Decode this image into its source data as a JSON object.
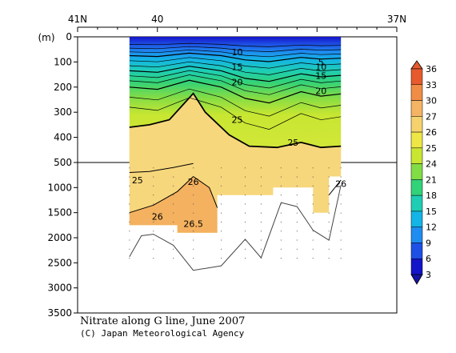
{
  "chart_data": {
    "type": "heatmap",
    "title": "Nitrate along G line, June 2007",
    "credit": "(C) Japan Meteorological Agency",
    "ylabel": "(m)",
    "top_axis": {
      "ticks": [
        {
          "lat": 41,
          "label": "41N"
        },
        {
          "lat": 40,
          "label": "40"
        },
        {
          "lat": 37,
          "label": "37N"
        }
      ],
      "range": [
        41,
        37
      ]
    },
    "depth_axis_upper": {
      "ticks": [
        0,
        100,
        200,
        300,
        400,
        500
      ],
      "range": [
        0,
        500
      ]
    },
    "depth_axis_lower": {
      "ticks": [
        500,
        1000,
        1500,
        2000,
        2500,
        3000,
        3500
      ],
      "range": [
        500,
        3500
      ]
    },
    "colorbar": {
      "labels": [
        "3",
        "6",
        "9",
        "12",
        "15",
        "18",
        "21",
        "24",
        "25",
        "26",
        "27",
        "30",
        "33",
        "36"
      ],
      "colors": [
        "#1414c8",
        "#1e50e6",
        "#1e8cf0",
        "#14b4e6",
        "#1ecdb4",
        "#32d278",
        "#82dc46",
        "#c8e632",
        "#eee646",
        "#f5d26e",
        "#f5b464",
        "#f08c46",
        "#e65a2d"
      ]
    },
    "section_extent_lat": [
      40.35,
      37.7
    ],
    "density_contours": [
      {
        "label": "10",
        "depth_m": 70
      },
      {
        "label": "15",
        "depth_m": 130
      },
      {
        "label": "20",
        "depth_m": 190
      },
      {
        "label": "25",
        "depth_m": 370
      },
      {
        "label": "26",
        "depth_m": 1500
      },
      {
        "label": "26.5",
        "depth_m": 1750
      }
    ],
    "contour_labels": [
      {
        "label": "10",
        "lat": 39.0,
        "depth": 60
      },
      {
        "label": "15",
        "lat": 39.0,
        "depth": 120
      },
      {
        "label": "20",
        "lat": 39.0,
        "depth": 180
      },
      {
        "label": "5",
        "lat": 37.95,
        "depth": 100
      },
      {
        "label": "10",
        "lat": 37.95,
        "depth": 120
      },
      {
        "label": "15",
        "lat": 37.95,
        "depth": 155
      },
      {
        "label": "20",
        "lat": 37.95,
        "depth": 215
      },
      {
        "label": "25",
        "lat": 39.0,
        "depth": 330
      },
      {
        "label": "25",
        "lat": 38.3,
        "depth": 420
      },
      {
        "label": "25",
        "lat": 40.25,
        "depth": 850
      },
      {
        "label": "26",
        "lat": 39.55,
        "depth": 880
      },
      {
        "label": "26",
        "lat": 37.7,
        "depth": 920
      },
      {
        "label": "26",
        "lat": 40.0,
        "depth": 1580
      },
      {
        "label": "26.5",
        "lat": 39.55,
        "depth": 1720
      }
    ],
    "bottom_profile": [
      {
        "lat": 40.35,
        "depth": 2380
      },
      {
        "lat": 40.2,
        "depth": 1960
      },
      {
        "lat": 40.05,
        "depth": 1930
      },
      {
        "lat": 39.8,
        "depth": 2150
      },
      {
        "lat": 39.55,
        "depth": 2650
      },
      {
        "lat": 39.2,
        "depth": 2560
      },
      {
        "lat": 38.9,
        "depth": 2030
      },
      {
        "lat": 38.7,
        "depth": 2400
      },
      {
        "lat": 38.45,
        "depth": 1300
      },
      {
        "lat": 38.25,
        "depth": 1380
      },
      {
        "lat": 38.05,
        "depth": 1850
      },
      {
        "lat": 37.85,
        "depth": 2050
      },
      {
        "lat": 37.7,
        "depth": 950
      }
    ],
    "grid": false
  }
}
